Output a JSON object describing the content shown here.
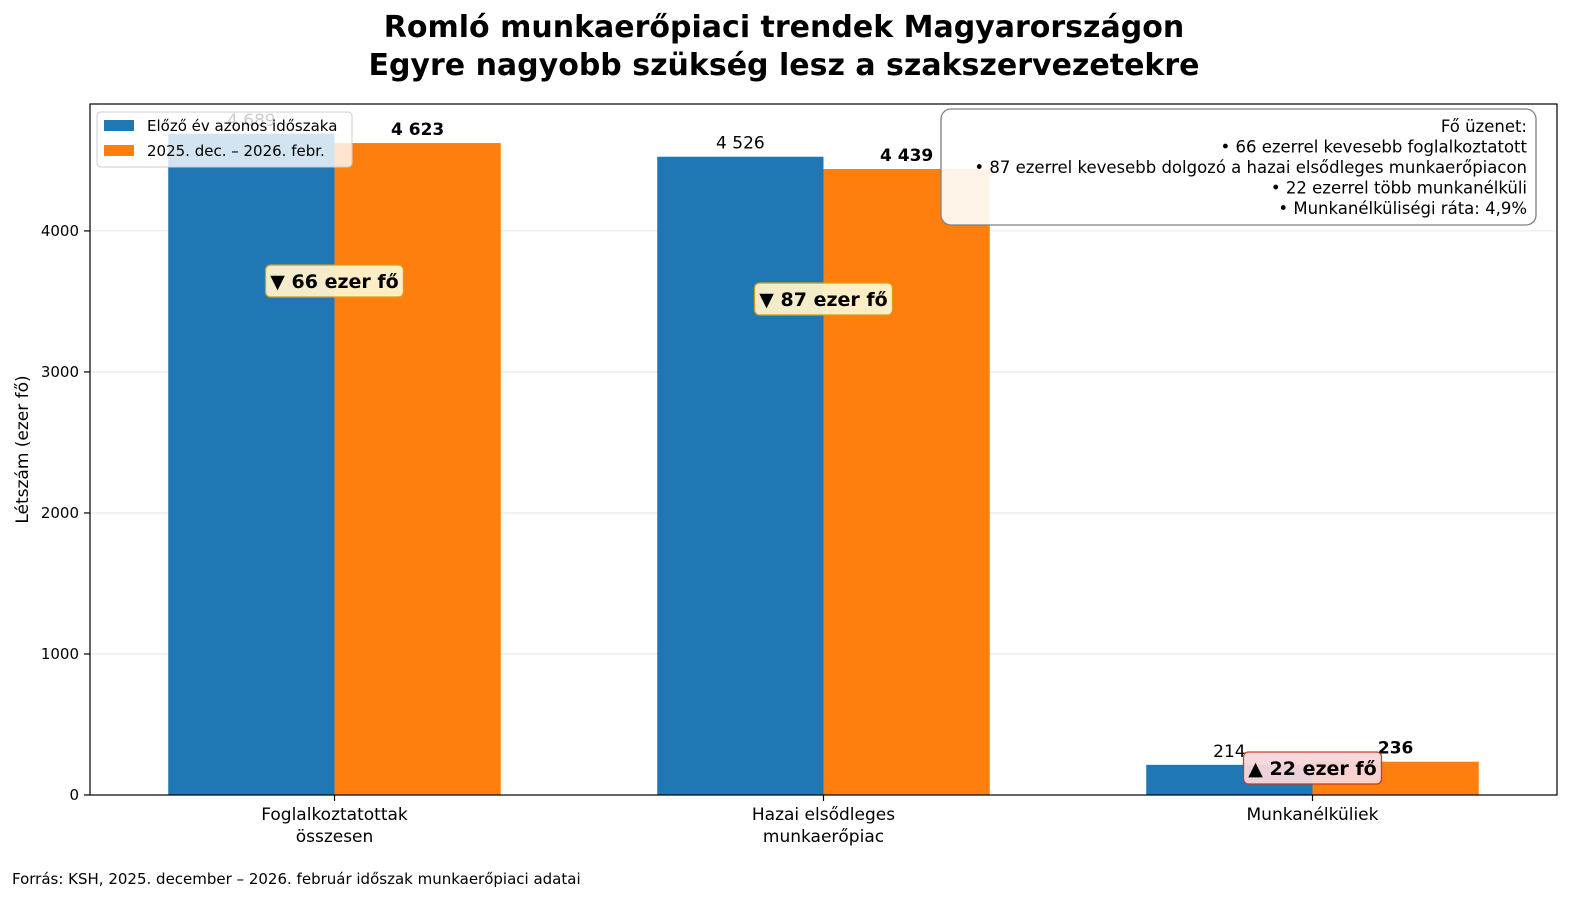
{
  "chart_data": {
    "type": "bar",
    "title_lines": [
      "Romló munkaerőpiaci trendek Magyarországon",
      "Egyre nagyobb szükség lesz a szakszervezetekre"
    ],
    "xlabel": "",
    "ylabel": "Létszám (ezer fő)",
    "ylim": [
      0,
      4900
    ],
    "yticks": [
      0,
      1000,
      2000,
      3000,
      4000
    ],
    "grid": "horizontal",
    "legend_position": "upper-left",
    "categories": [
      [
        "Foglalkoztatottak",
        "összesen"
      ],
      [
        "Hazai elsődleges",
        "munkaerőpiac"
      ],
      [
        "Munkanélküliek"
      ]
    ],
    "series": [
      {
        "name": "Előző év azonos időszaka",
        "color": "#1f77b4",
        "values": [
          4689,
          4526,
          214
        ],
        "labels": [
          "4 689",
          "4 526",
          "214"
        ]
      },
      {
        "name": "2025. dec. – 2026. febr.",
        "color": "#ff7f0e",
        "values": [
          4623,
          4439,
          236
        ],
        "labels": [
          "4 623",
          "4 439",
          "236"
        ]
      }
    ],
    "annotations": [
      {
        "text": "▼ 66 ezer fő",
        "style": "decrease"
      },
      {
        "text": "▼ 87 ezer fő",
        "style": "decrease"
      },
      {
        "text": "▲ 22 ezer fő",
        "style": "increase"
      }
    ],
    "info_box": [
      "Fő üzenet:",
      "• 66 ezerrel kevesebb foglalkoztatott",
      "• 87 ezerrel kevesebb dolgozó a hazai elsődleges munkaerőpiacon",
      "• 22 ezerrel több munkanélküli",
      "• Munkanélküliségi ráta: 4,9%"
    ],
    "source": "Forrás: KSH, 2025. december – 2026. február időszak munkaerőpiaci adatai"
  },
  "colors": {
    "decrease_box_fill": "#fff3cd",
    "decrease_box_border": "#d4a017",
    "increase_box_fill": "#f8d7da",
    "increase_box_border": "#c0392b"
  }
}
